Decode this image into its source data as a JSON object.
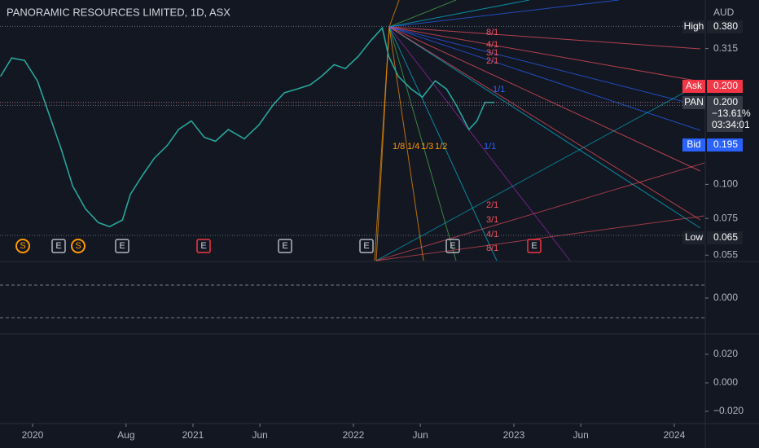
{
  "chart_data": [
    {
      "type": "line",
      "title": "PANORAMIC RESOURCES LIMITED, 1D, ASX",
      "y_unit": "AUD",
      "log_scale": true,
      "ylim": [
        0.0525,
        0.475
      ],
      "xlim": [
        2019.797,
        2024.188
      ],
      "yticks": [
        0.315,
        {
          "value": 0.1,
          "label": "0.100"
        },
        0.075,
        0.055
      ],
      "xticks": [
        {
          "value": 2020,
          "label": "2020"
        },
        {
          "value": 2020.583,
          "label": "Aug"
        },
        {
          "value": 2021,
          "label": "2021"
        },
        {
          "value": 2021.417,
          "label": "Jun"
        },
        {
          "value": 2022,
          "label": "2022"
        },
        {
          "value": 2022.417,
          "label": "Jun"
        },
        {
          "value": 2023,
          "label": "2023"
        },
        {
          "value": 2023.417,
          "label": "Jun"
        },
        {
          "value": 2024,
          "label": "2024"
        }
      ],
      "series": [
        {
          "name": "PAN",
          "color": "#26a69a",
          "x": [
            2019.8,
            2019.87,
            2019.95,
            2020.03,
            2020.1,
            2020.18,
            2020.25,
            2020.33,
            2020.41,
            2020.48,
            2020.56,
            2020.61,
            2020.69,
            2020.76,
            2020.84,
            2020.91,
            2020.99,
            2021.07,
            2021.14,
            2021.22,
            2021.32,
            2021.41,
            2021.5,
            2021.57,
            2021.65,
            2021.73,
            2021.8,
            2021.88,
            2021.95,
            2022.03,
            2022.11,
            2022.18,
            2022.22,
            2022.28,
            2022.36,
            2022.43,
            2022.51,
            2022.58,
            2022.64,
            2022.72,
            2022.77,
            2022.82,
            2022.88
          ],
          "values": [
            0.249,
            0.291,
            0.285,
            0.24,
            0.183,
            0.134,
            0.0986,
            0.0813,
            0.0724,
            0.07,
            0.074,
            0.092,
            0.109,
            0.125,
            0.139,
            0.159,
            0.171,
            0.149,
            0.144,
            0.159,
            0.147,
            0.165,
            0.196,
            0.217,
            0.224,
            0.232,
            0.249,
            0.275,
            0.266,
            0.295,
            0.338,
            0.375,
            0.295,
            0.249,
            0.224,
            0.209,
            0.24,
            0.224,
            0.196,
            0.159,
            0.171,
            0.2,
            0.2
          ]
        }
      ],
      "price_labels": [
        {
          "name": "High",
          "value": 0.38,
          "label": "0.380",
          "color": "#1e222d"
        },
        {
          "name": "Ask",
          "value": 0.2,
          "label": "0.200",
          "color": "#f23645"
        },
        {
          "name": "PAN",
          "value": 0.2,
          "label": "0.200",
          "change": "−13.61%",
          "countdown": "03:34:01",
          "color": "#363a45"
        },
        {
          "name": "Bid",
          "value": 0.195,
          "label": "0.195",
          "color": "#2962ff"
        },
        {
          "name": "Low",
          "value": 0.065,
          "label": "0.065",
          "color": "#1e222d"
        }
      ],
      "events": [
        "S",
        "E",
        "S",
        "E",
        "E",
        "E",
        "E",
        "E",
        "E"
      ],
      "fan_labels": [
        "8/1",
        "4/1",
        "3/1",
        "2/1",
        "1/1",
        "1/1",
        "2/1",
        "3/1",
        "4/1",
        "8/1",
        "1/8",
        "1/4",
        "1/3",
        "1/2"
      ]
    },
    {
      "type": "oscillator",
      "ylim": [
        -1,
        1
      ],
      "yticks": [
        {
          "value": 0,
          "label": "0.000"
        }
      ]
    },
    {
      "type": "oscillator",
      "ylim": [
        -0.0286,
        0.0343
      ],
      "yticks": [
        {
          "value": 0.02,
          "label": "0.020"
        },
        {
          "value": 0,
          "label": "0.000"
        },
        {
          "value": -0.02,
          "label": "−0.020"
        }
      ]
    }
  ]
}
